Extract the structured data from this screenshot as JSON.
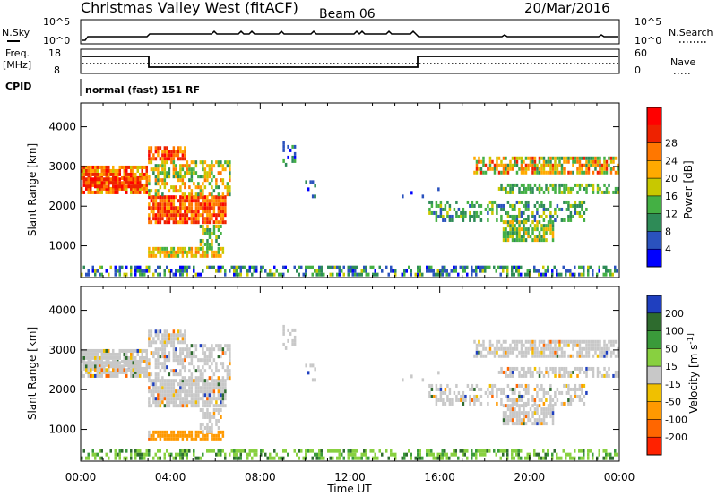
{
  "header": {
    "title": "Christmas Valley West (fitACF)",
    "beam": "Beam 06",
    "date": "20/Mar/2016"
  },
  "noise_panel": {
    "left_label": "N.Sky",
    "right_label": "N.Search",
    "left_ticks": [
      "10^5",
      "10^0"
    ],
    "right_ticks": [
      "10^5",
      "10^0"
    ]
  },
  "freq_panel": {
    "left_label_1": "Freq.",
    "left_label_2": "[MHz]",
    "right_label": "Nave",
    "left_ticks": [
      "18",
      "8"
    ],
    "right_ticks": [
      "60",
      "0"
    ]
  },
  "cpid": {
    "label": "CPID",
    "text": "normal (fast) 151 RF"
  },
  "chart_data": [
    {
      "type": "heatmap",
      "name": "power",
      "ylabel": "Slant Range [km]",
      "yticks": [
        "1000",
        "2000",
        "3000",
        "4000"
      ],
      "ylim": [
        200,
        4600
      ],
      "colorbar": {
        "label": "Power [dB]",
        "ticks": [
          "4",
          "8",
          "12",
          "16",
          "20",
          "24",
          "28"
        ],
        "colors": [
          "#0000ff",
          "#2a52be",
          "#2e8b57",
          "#44b044",
          "#c8c800",
          "#ffaa00",
          "#ff7700",
          "#ee2200",
          "#ff0000"
        ]
      }
    },
    {
      "type": "heatmap",
      "name": "velocity",
      "ylabel": "Slant Range [km]",
      "yticks": [
        "1000",
        "2000",
        "3000",
        "4000"
      ],
      "ylim": [
        200,
        4600
      ],
      "colorbar": {
        "label": "Velocity [m s^-1]",
        "ticks": [
          "200",
          "100",
          "50",
          "15",
          "-15",
          "-50",
          "-100",
          "-200"
        ],
        "colors": [
          "#1f3fbf",
          "#2e6b2e",
          "#3a9a3a",
          "#88d040",
          "#c8c8c8",
          "#f0c000",
          "#ff9900",
          "#ff6600",
          "#ff2200"
        ]
      }
    }
  ],
  "x_axis": {
    "label": "Time UT",
    "ticks": [
      "00:00",
      "04:00",
      "08:00",
      "12:00",
      "16:00",
      "20:00",
      "00:00"
    ]
  }
}
